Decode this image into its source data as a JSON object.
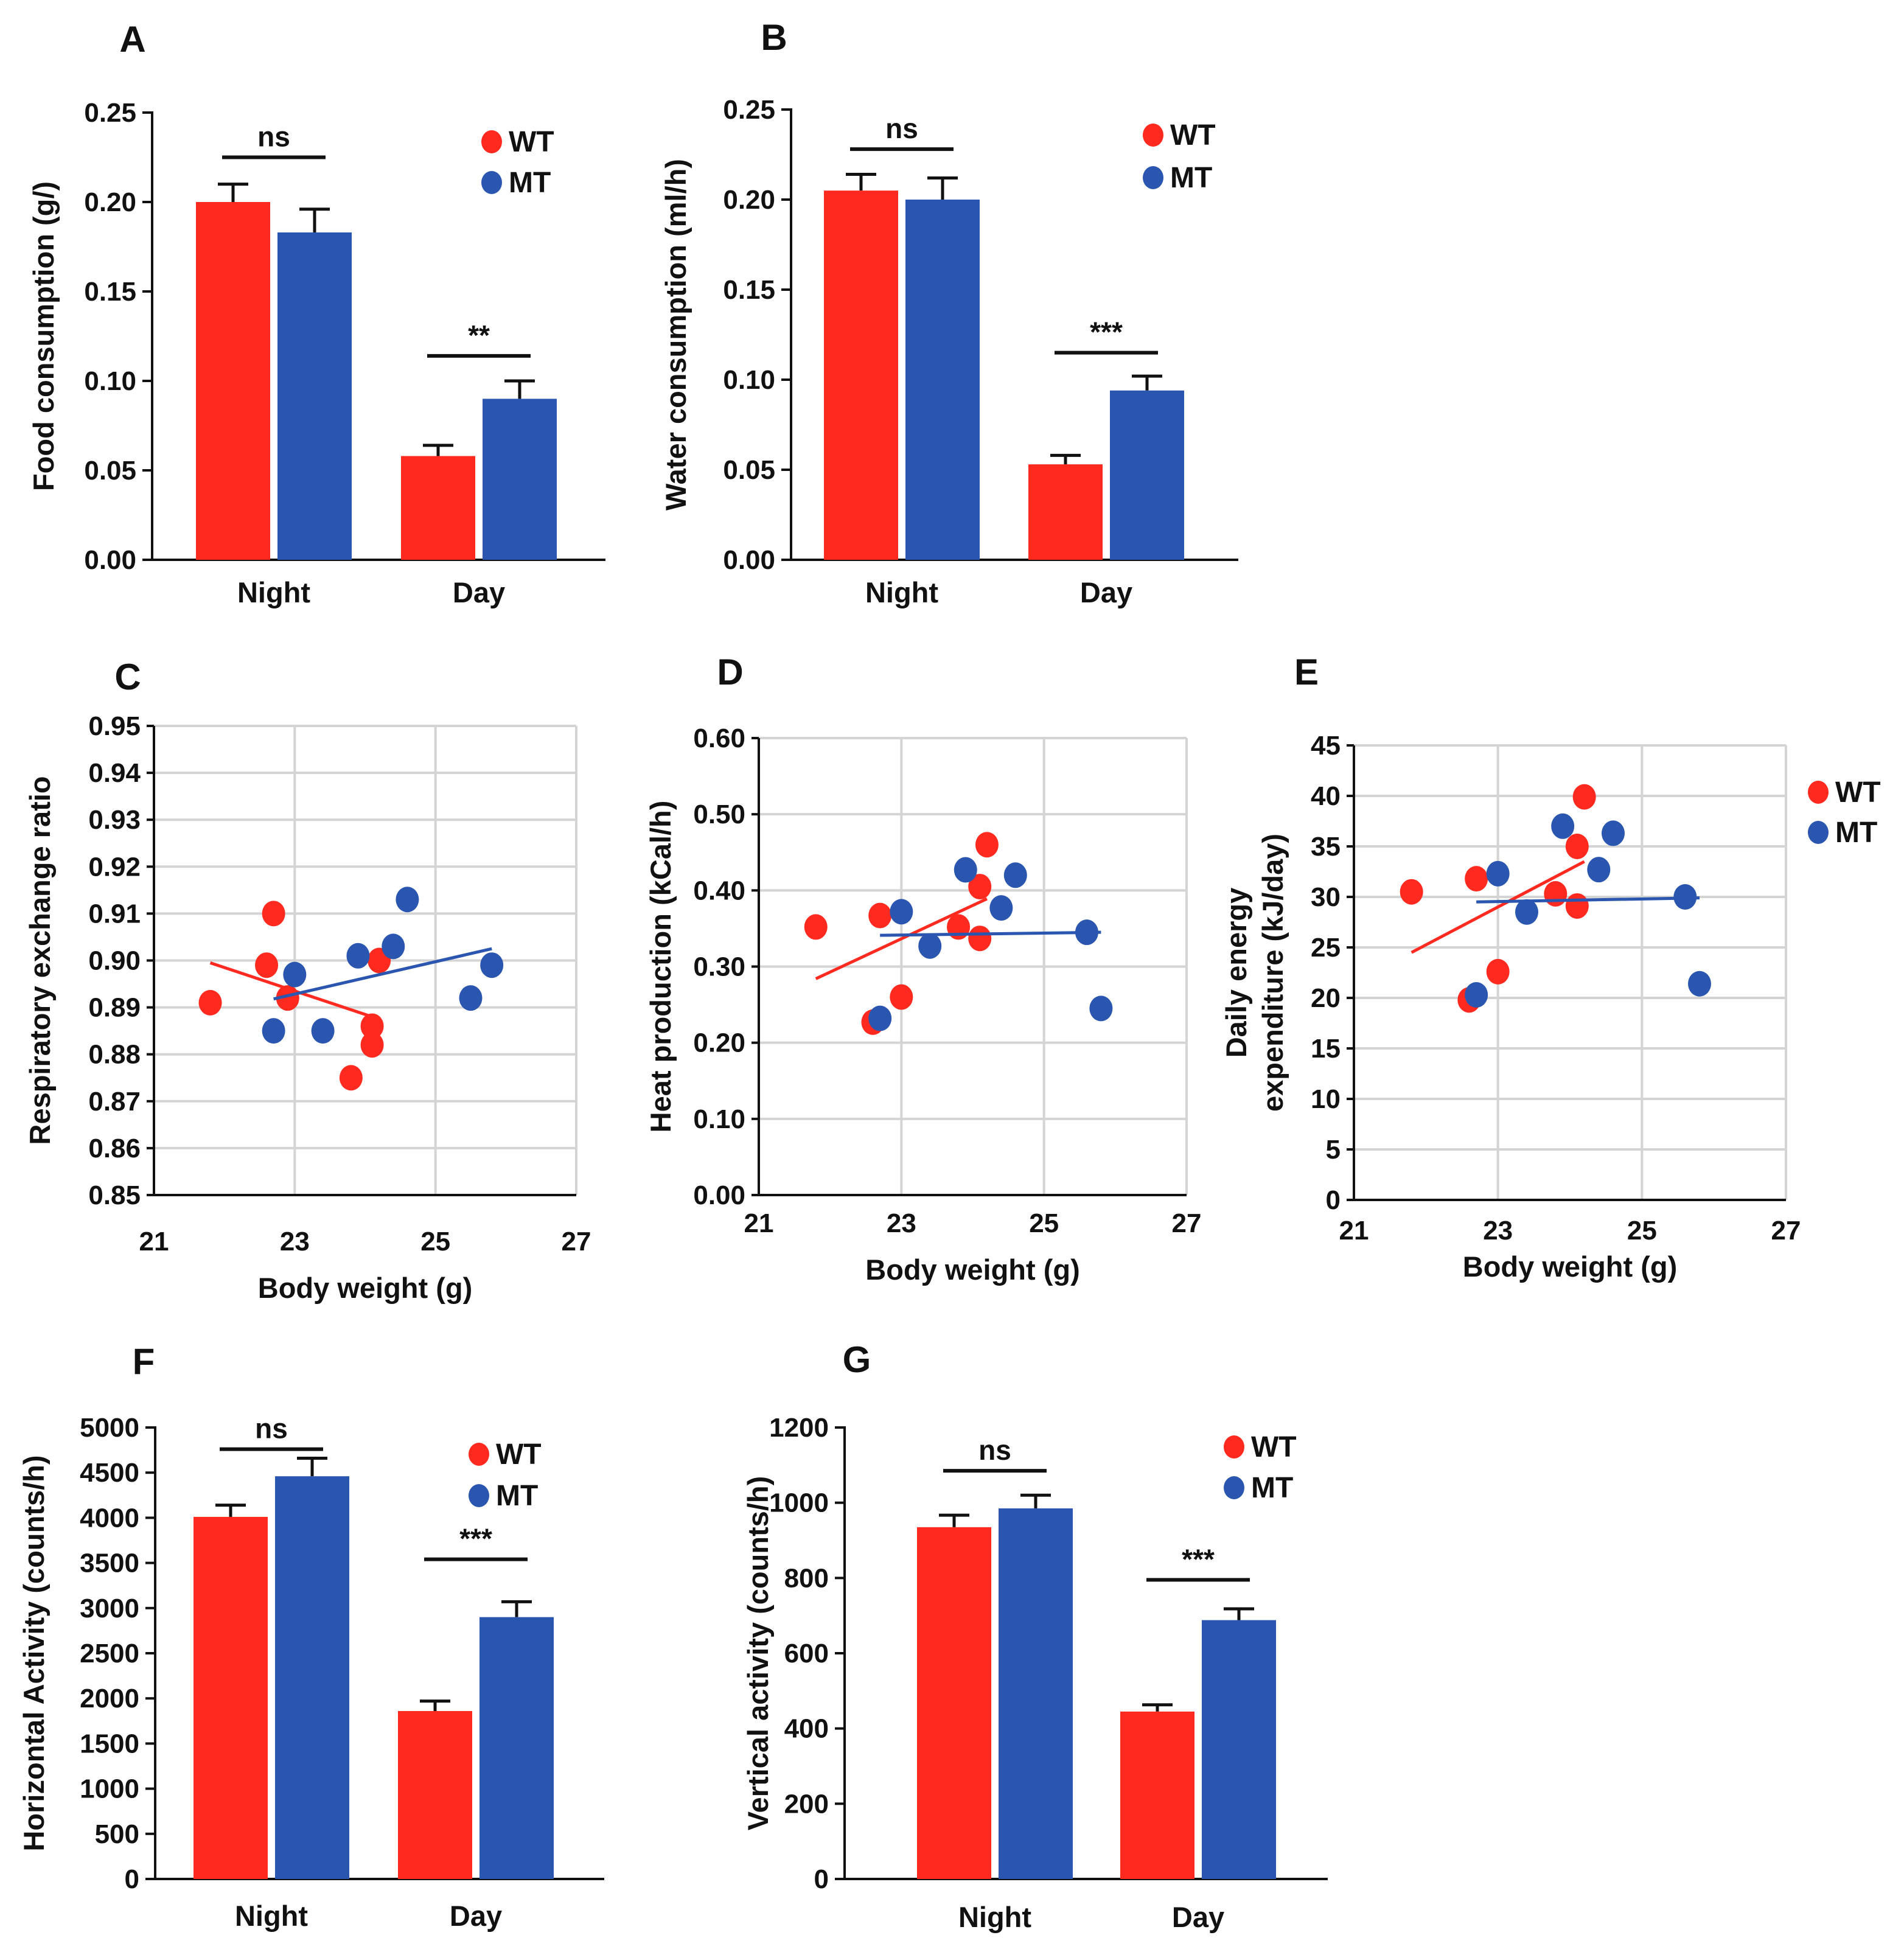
{
  "colors": {
    "WT": "#ff2a1f",
    "MT": "#2a56b0"
  },
  "chart_data": [
    {
      "id": "A",
      "letter": "A",
      "type": "bar",
      "categories": [
        "Night",
        "Day"
      ],
      "series": [
        {
          "name": "WT",
          "values": [
            0.2,
            0.058
          ],
          "errors": [
            0.01,
            0.006
          ]
        },
        {
          "name": "MT",
          "values": [
            0.183,
            0.09
          ],
          "errors": [
            0.013,
            0.01
          ]
        }
      ],
      "ylabel": "Food consumption (g/)",
      "ylim": [
        0,
        0.25
      ],
      "yticks": [
        "0.00",
        "0.05",
        "0.10",
        "0.15",
        "0.20",
        "0.25"
      ],
      "legend": [
        "WT",
        "MT"
      ],
      "significance": [
        {
          "category": "Night",
          "label": "ns",
          "y": 0.225
        },
        {
          "category": "Day",
          "label": "**",
          "y": 0.114
        }
      ]
    },
    {
      "id": "B",
      "letter": "B",
      "type": "bar",
      "categories": [
        "Night",
        "Day"
      ],
      "series": [
        {
          "name": "WT",
          "values": [
            0.205,
            0.053
          ],
          "errors": [
            0.009,
            0.005
          ]
        },
        {
          "name": "MT",
          "values": [
            0.2,
            0.094
          ],
          "errors": [
            0.012,
            0.008
          ]
        }
      ],
      "ylabel": "Water consumption (ml/h)",
      "ylim": [
        0,
        0.25
      ],
      "yticks": [
        "0.00",
        "0.05",
        "0.10",
        "0.15",
        "0.20",
        "0.25"
      ],
      "legend": [
        "WT",
        "MT"
      ],
      "significance": [
        {
          "category": "Night",
          "label": "ns",
          "y": 0.228
        },
        {
          "category": "Day",
          "label": "***",
          "y": 0.115
        }
      ]
    },
    {
      "id": "C",
      "letter": "C",
      "type": "scatter",
      "xlabel": "Body weight (g)",
      "ylabel": "Respiratory exchange ratio",
      "xlim": [
        21,
        27
      ],
      "ylim": [
        0.85,
        0.95
      ],
      "xticks": [
        "21",
        "23",
        "25",
        "27"
      ],
      "yticks": [
        "0.85",
        "0.86",
        "0.87",
        "0.88",
        "0.89",
        "0.90",
        "0.91",
        "0.92",
        "0.93",
        "0.94",
        "0.95"
      ],
      "series": [
        {
          "name": "WT",
          "x": [
            21.8,
            22.6,
            22.7,
            22.9,
            23.8,
            24.1,
            24.1,
            24.2
          ],
          "y": [
            0.891,
            0.899,
            0.91,
            0.892,
            0.875,
            0.886,
            0.882,
            0.9
          ],
          "trend": [
            [
              21.8,
              0.8995
            ],
            [
              24.1,
              0.888
            ]
          ]
        },
        {
          "name": "MT",
          "x": [
            22.7,
            23.0,
            23.4,
            23.9,
            24.4,
            24.6,
            25.5,
            25.8
          ],
          "y": [
            0.885,
            0.897,
            0.885,
            0.901,
            0.903,
            0.913,
            0.892,
            0.899
          ],
          "trend": [
            [
              22.7,
              0.8918
            ],
            [
              25.8,
              0.9025
            ]
          ]
        }
      ]
    },
    {
      "id": "D",
      "letter": "D",
      "type": "scatter",
      "xlabel": "Body weight (g)",
      "ylabel": "Heat production (kCal/h)",
      "xlim": [
        21,
        27
      ],
      "ylim": [
        0,
        0.6
      ],
      "xticks": [
        "21",
        "23",
        "25",
        "27"
      ],
      "yticks": [
        "0.00",
        "0.10",
        "0.20",
        "0.30",
        "0.40",
        "0.50",
        "0.60"
      ],
      "series": [
        {
          "name": "WT",
          "x": [
            21.8,
            22.6,
            22.7,
            23.0,
            23.8,
            24.1,
            24.1,
            24.2
          ],
          "y": [
            0.352,
            0.227,
            0.367,
            0.26,
            0.352,
            0.337,
            0.405,
            0.46
          ],
          "trend": [
            [
              21.8,
              0.284
            ],
            [
              24.2,
              0.389
            ]
          ]
        },
        {
          "name": "MT",
          "x": [
            22.7,
            23.0,
            23.4,
            23.9,
            24.4,
            24.6,
            25.6,
            25.8
          ],
          "y": [
            0.232,
            0.372,
            0.327,
            0.427,
            0.377,
            0.42,
            0.345,
            0.245
          ],
          "trend": [
            [
              22.7,
              0.341
            ],
            [
              25.8,
              0.345
            ]
          ]
        }
      ]
    },
    {
      "id": "E",
      "letter": "E",
      "type": "scatter",
      "xlabel": "Body weight (g)",
      "ylabel": "Daily energy expenditure (kJ/day)",
      "ylabel_lines": [
        "Daily energy",
        "expenditure (kJ/day)"
      ],
      "xlim": [
        21,
        27
      ],
      "ylim": [
        0,
        45
      ],
      "xticks": [
        "21",
        "23",
        "25",
        "27"
      ],
      "yticks": [
        "0",
        "5",
        "10",
        "15",
        "20",
        "25",
        "30",
        "35",
        "40",
        "45"
      ],
      "legend": [
        "WT",
        "MT"
      ],
      "series": [
        {
          "name": "WT",
          "x": [
            21.8,
            22.6,
            22.7,
            23.0,
            23.8,
            24.1,
            24.1,
            24.2
          ],
          "y": [
            30.5,
            19.8,
            31.8,
            22.6,
            30.3,
            29.1,
            35.0,
            39.9
          ],
          "trend": [
            [
              21.8,
              24.5
            ],
            [
              24.2,
              33.5
            ]
          ]
        },
        {
          "name": "MT",
          "x": [
            22.7,
            23.0,
            23.4,
            23.9,
            24.4,
            24.6,
            25.6,
            25.8
          ],
          "y": [
            20.3,
            32.3,
            28.5,
            37.0,
            32.7,
            36.3,
            30.0,
            21.4
          ],
          "trend": [
            [
              22.7,
              29.5
            ],
            [
              25.8,
              29.9
            ]
          ]
        }
      ]
    },
    {
      "id": "F",
      "letter": "F",
      "type": "bar",
      "categories": [
        "Night",
        "Day"
      ],
      "series": [
        {
          "name": "WT",
          "values": [
            4010,
            1860
          ],
          "errors": [
            130,
            110
          ]
        },
        {
          "name": "MT",
          "values": [
            4460,
            2900
          ],
          "errors": [
            200,
            170
          ]
        }
      ],
      "ylabel": "Horizontal Activity (counts/h)",
      "ylim": [
        0,
        5000
      ],
      "yticks": [
        "0",
        "500",
        "1000",
        "1500",
        "2000",
        "2500",
        "3000",
        "3500",
        "4000",
        "4500",
        "5000"
      ],
      "legend": [
        "WT",
        "MT"
      ],
      "significance": [
        {
          "category": "Night",
          "label": "ns",
          "y": 4760
        },
        {
          "category": "Day",
          "label": "***",
          "y": 3540
        }
      ]
    },
    {
      "id": "G",
      "letter": "G",
      "type": "bar",
      "categories": [
        "Night",
        "Day"
      ],
      "series": [
        {
          "name": "WT",
          "values": [
            935,
            445
          ],
          "errors": [
            32,
            18
          ]
        },
        {
          "name": "MT",
          "values": [
            985,
            688
          ],
          "errors": [
            35,
            30
          ]
        }
      ],
      "ylabel": "Vertical activity (counts/h)",
      "ylim": [
        0,
        1200
      ],
      "yticks": [
        "0",
        "200",
        "400",
        "600",
        "800",
        "1000",
        "1200"
      ],
      "legend": [
        "WT",
        "MT"
      ],
      "significance": [
        {
          "category": "Night",
          "label": "ns",
          "y": 1085
        },
        {
          "category": "Day",
          "label": "***",
          "y": 795
        }
      ]
    }
  ]
}
